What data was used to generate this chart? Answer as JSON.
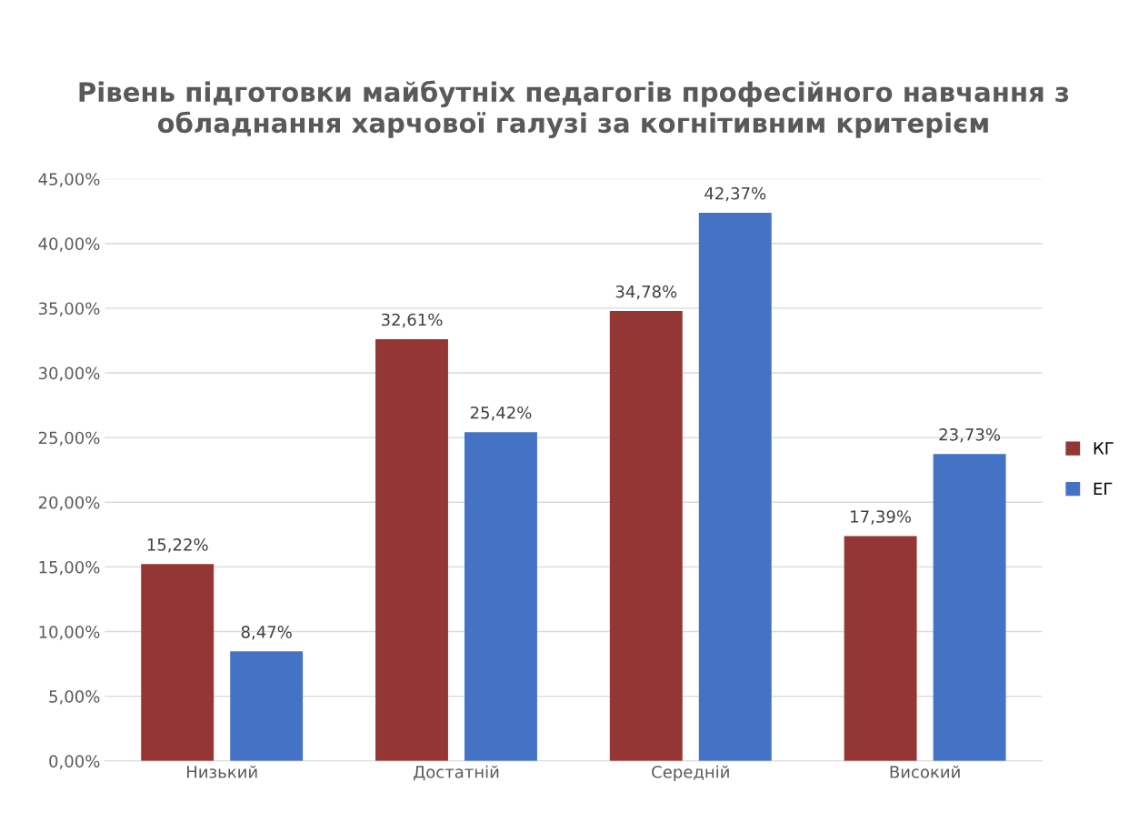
{
  "chart_data": {
    "type": "bar",
    "title": "Рівень підготовки майбутніх педагогів професійного навчання з обладнання харчової галузі за когнітивним критерієм",
    "categories": [
      "Низький",
      "Достатній",
      "Середній",
      "Високий"
    ],
    "series": [
      {
        "name": "КГ",
        "color": "#943634",
        "values": [
          15.22,
          32.61,
          34.78,
          17.39
        ],
        "value_labels": [
          "15,22%",
          "32,61%",
          "34,78%",
          "17,39%"
        ]
      },
      {
        "name": "ЕГ",
        "color": "#4472c4",
        "values": [
          8.47,
          25.42,
          42.37,
          23.73
        ],
        "value_labels": [
          "8,47%",
          "25,42%",
          "42,37%",
          "23,73%"
        ]
      }
    ],
    "ylim": [
      0,
      45
    ],
    "yticks": [
      {
        "value": 0,
        "label": "0,00%"
      },
      {
        "value": 5,
        "label": "5,00%"
      },
      {
        "value": 10,
        "label": "10,00%"
      },
      {
        "value": 15,
        "label": "15,00%"
      },
      {
        "value": 20,
        "label": "20,00%"
      },
      {
        "value": 25,
        "label": "25,00%"
      },
      {
        "value": 30,
        "label": "30,00%"
      },
      {
        "value": 35,
        "label": "35,00%"
      },
      {
        "value": 40,
        "label": "40,00%"
      },
      {
        "value": 45,
        "label": "45,00%"
      }
    ],
    "grid": "y",
    "legend": "right"
  }
}
